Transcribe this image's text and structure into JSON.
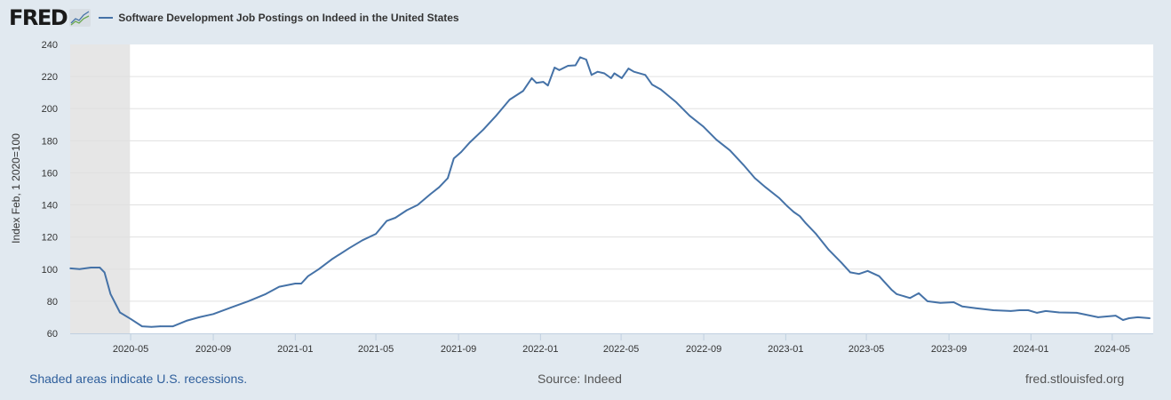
{
  "header": {
    "logo": "FRED",
    "legend_label": "Software Development Job Postings on Indeed in the United States"
  },
  "footer": {
    "recession_note": "Shaded areas indicate U.S. recessions.",
    "source": "Source: Indeed",
    "site": "fred.stlouisfed.org"
  },
  "colors": {
    "line": "#4572a7",
    "background": "#e1e9f0",
    "plot": "#ffffff",
    "recession": "#e6e6e6",
    "grid": "#e0e0e0"
  },
  "chart_data": {
    "type": "line",
    "title": "Software Development Job Postings on Indeed in the United States",
    "xlabel": "",
    "ylabel": "Index Feb, 1 2020=100",
    "ylim": [
      60,
      240
    ],
    "yticks": [
      60,
      80,
      100,
      120,
      140,
      160,
      180,
      200,
      220,
      240
    ],
    "xticks": [
      "2020-05",
      "2020-09",
      "2021-01",
      "2021-05",
      "2021-09",
      "2022-01",
      "2022-05",
      "2022-09",
      "2023-01",
      "2023-05",
      "2023-09",
      "2024-01",
      "2024-05"
    ],
    "xlim": [
      "2020-02-01",
      "2024-07-01"
    ],
    "grid": true,
    "legend": "top-left",
    "recessions": [
      {
        "start": "2020-02-01",
        "end": "2020-04-30"
      }
    ],
    "series": [
      {
        "name": "Software Development Job Postings on Indeed in the United States",
        "x": [
          "2020-02-01",
          "2020-02-15",
          "2020-03-03",
          "2020-03-16",
          "2020-03-23",
          "2020-04-01",
          "2020-04-15",
          "2020-05-01",
          "2020-05-18",
          "2020-06-01",
          "2020-06-14",
          "2020-07-03",
          "2020-07-23",
          "2020-08-11",
          "2020-09-01",
          "2020-09-27",
          "2020-10-23",
          "2020-11-18",
          "2020-12-08",
          "2021-01-01",
          "2021-01-10",
          "2021-01-20",
          "2021-02-05",
          "2021-02-24",
          "2021-03-22",
          "2021-04-11",
          "2021-05-01",
          "2021-05-17",
          "2021-05-30",
          "2021-06-16",
          "2021-07-02",
          "2021-07-21",
          "2021-08-03",
          "2021-08-16",
          "2021-08-25",
          "2021-09-05",
          "2021-09-18",
          "2021-10-08",
          "2021-10-27",
          "2021-11-16",
          "2021-12-06",
          "2021-12-19",
          "2021-12-26",
          "2022-01-05",
          "2022-01-12",
          "2022-01-22",
          "2022-01-29",
          "2022-02-11",
          "2022-02-22",
          "2022-03-01",
          "2022-03-10",
          "2022-03-18",
          "2022-03-27",
          "2022-04-06",
          "2022-04-16",
          "2022-04-21",
          "2022-05-02",
          "2022-05-12",
          "2022-05-20",
          "2022-06-06",
          "2022-06-16",
          "2022-06-29",
          "2022-07-22",
          "2022-08-11",
          "2022-08-31",
          "2022-09-20",
          "2022-10-10",
          "2022-10-30",
          "2022-11-16",
          "2022-12-02",
          "2022-12-22",
          "2023-01-04",
          "2023-01-13",
          "2023-01-22",
          "2023-01-30",
          "2023-02-15",
          "2023-03-06",
          "2023-03-25",
          "2023-04-07",
          "2023-04-20",
          "2023-05-03",
          "2023-05-20",
          "2023-06-08",
          "2023-06-15",
          "2023-07-05",
          "2023-07-18",
          "2023-07-31",
          "2023-08-19",
          "2023-09-08",
          "2023-09-21",
          "2023-10-11",
          "2023-11-06",
          "2023-12-02",
          "2023-12-15",
          "2023-12-28",
          "2024-01-10",
          "2024-01-23",
          "2024-02-12",
          "2024-03-09",
          "2024-04-10",
          "2024-05-06",
          "2024-05-17",
          "2024-05-26",
          "2024-06-08",
          "2024-06-26"
        ],
        "values": [
          100.5,
          100,
          101,
          101,
          98,
          84.5,
          73,
          69,
          64.4,
          64,
          64.4,
          64.4,
          67.8,
          70,
          72,
          76,
          80,
          84.5,
          89,
          91,
          91,
          95.6,
          100,
          106,
          113,
          118,
          122,
          130,
          132,
          136.7,
          140,
          146.7,
          151,
          156.7,
          169,
          173,
          179,
          187,
          195.6,
          205.6,
          211,
          219,
          216,
          216.7,
          214.4,
          225.6,
          224,
          226.7,
          227,
          232,
          230.6,
          221,
          223,
          222,
          219,
          222,
          219,
          225,
          223,
          221,
          215,
          212,
          204,
          195.6,
          189,
          180.6,
          174,
          165,
          156.7,
          151,
          144.4,
          139,
          135.6,
          133,
          129,
          122,
          112,
          104,
          98,
          97,
          98.9,
          95.6,
          87,
          84.5,
          82,
          85,
          80,
          79,
          79.4,
          76.7,
          75.6,
          74.4,
          73.9,
          74.4,
          74.4,
          72.8,
          73.9,
          73,
          72.8,
          70,
          71,
          68.3,
          69.4,
          70,
          69.4
        ]
      }
    ]
  }
}
